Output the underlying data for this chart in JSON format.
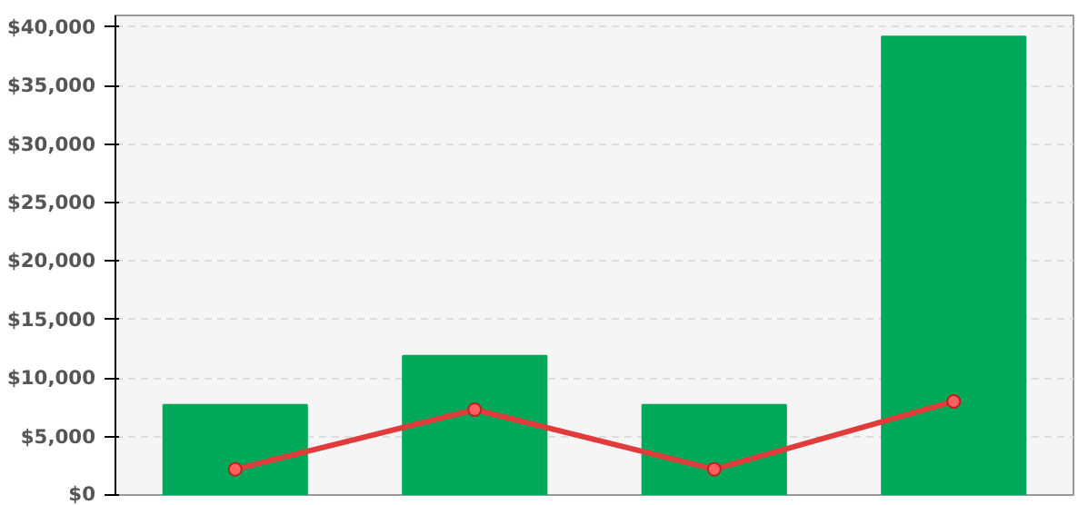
{
  "chart_data": {
    "type": "bar",
    "categories": [
      null,
      null,
      null,
      null
    ],
    "series": [
      {
        "color": "#00a85a",
        "values": [
          7700,
          11900,
          7700,
          39200
        ]
      },
      {
        "type": "line",
        "color": "#e03c3c",
        "values": [
          2200,
          7300,
          2200,
          8000
        ],
        "marker": "circle"
      }
    ],
    "ylim": [
      0,
      41000
    ],
    "yticks": [
      {
        "value": 0,
        "label": "$0"
      },
      {
        "value": 5000,
        "label": "$5,000"
      },
      {
        "value": 10000,
        "label": "$10,000"
      },
      {
        "value": 15000,
        "label": "$15,000"
      },
      {
        "value": 20000,
        "label": "$20,000"
      },
      {
        "value": 25000,
        "label": "$25,000"
      },
      {
        "value": 30000,
        "label": "$30,000"
      },
      {
        "value": 35000,
        "label": "$35,000"
      },
      {
        "value": 40000,
        "label": "$40,000"
      }
    ],
    "grid": "y",
    "tick_labels": "y"
  }
}
